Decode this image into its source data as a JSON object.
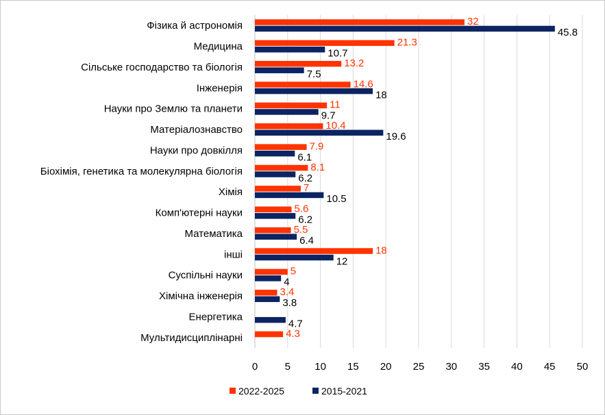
{
  "colors": {
    "series_2022": "#ff3300",
    "series_2015": "#0c2461",
    "grid": "#d9d9d9",
    "axis": "#bfbfbf"
  },
  "chart_data": {
    "type": "bar",
    "orientation": "horizontal",
    "categories": [
      "Фізика й астрономія",
      "Медицина",
      "Сільське господарство та біологія",
      "Інженерія",
      "Науки про Землю та планети ",
      "Матеріалознавство",
      "Науки про довкілля",
      "Біохімія, генетика та молекулярна біологія",
      "Хімія",
      "Комп'ютерні науки",
      "Математика",
      "інші",
      "Суспільні науки",
      "Хімічна інженерія",
      "Енергетика",
      "Мультидисциплінарні"
    ],
    "series": [
      {
        "name": "2022-2025",
        "color": "#ff3300",
        "values": [
          32,
          21.3,
          13.2,
          14.6,
          11,
          10.4,
          7.9,
          8.1,
          7,
          5.6,
          5.5,
          18,
          5,
          3.4,
          null,
          4.3
        ]
      },
      {
        "name": "2015-2021",
        "color": "#0c2461",
        "values": [
          45.8,
          10.7,
          7.5,
          18,
          9.7,
          19.6,
          6.1,
          6.2,
          10.5,
          6.2,
          6.4,
          12,
          4,
          3.8,
          4.7,
          null
        ]
      }
    ],
    "xlim": [
      0,
      50
    ],
    "xticks": [
      "0",
      "5",
      "10",
      "15",
      "20",
      "25",
      "30",
      "35",
      "40",
      "45",
      "50"
    ],
    "grid": true,
    "legend_position": "bottom",
    "title": "",
    "xlabel": "",
    "ylabel": ""
  }
}
